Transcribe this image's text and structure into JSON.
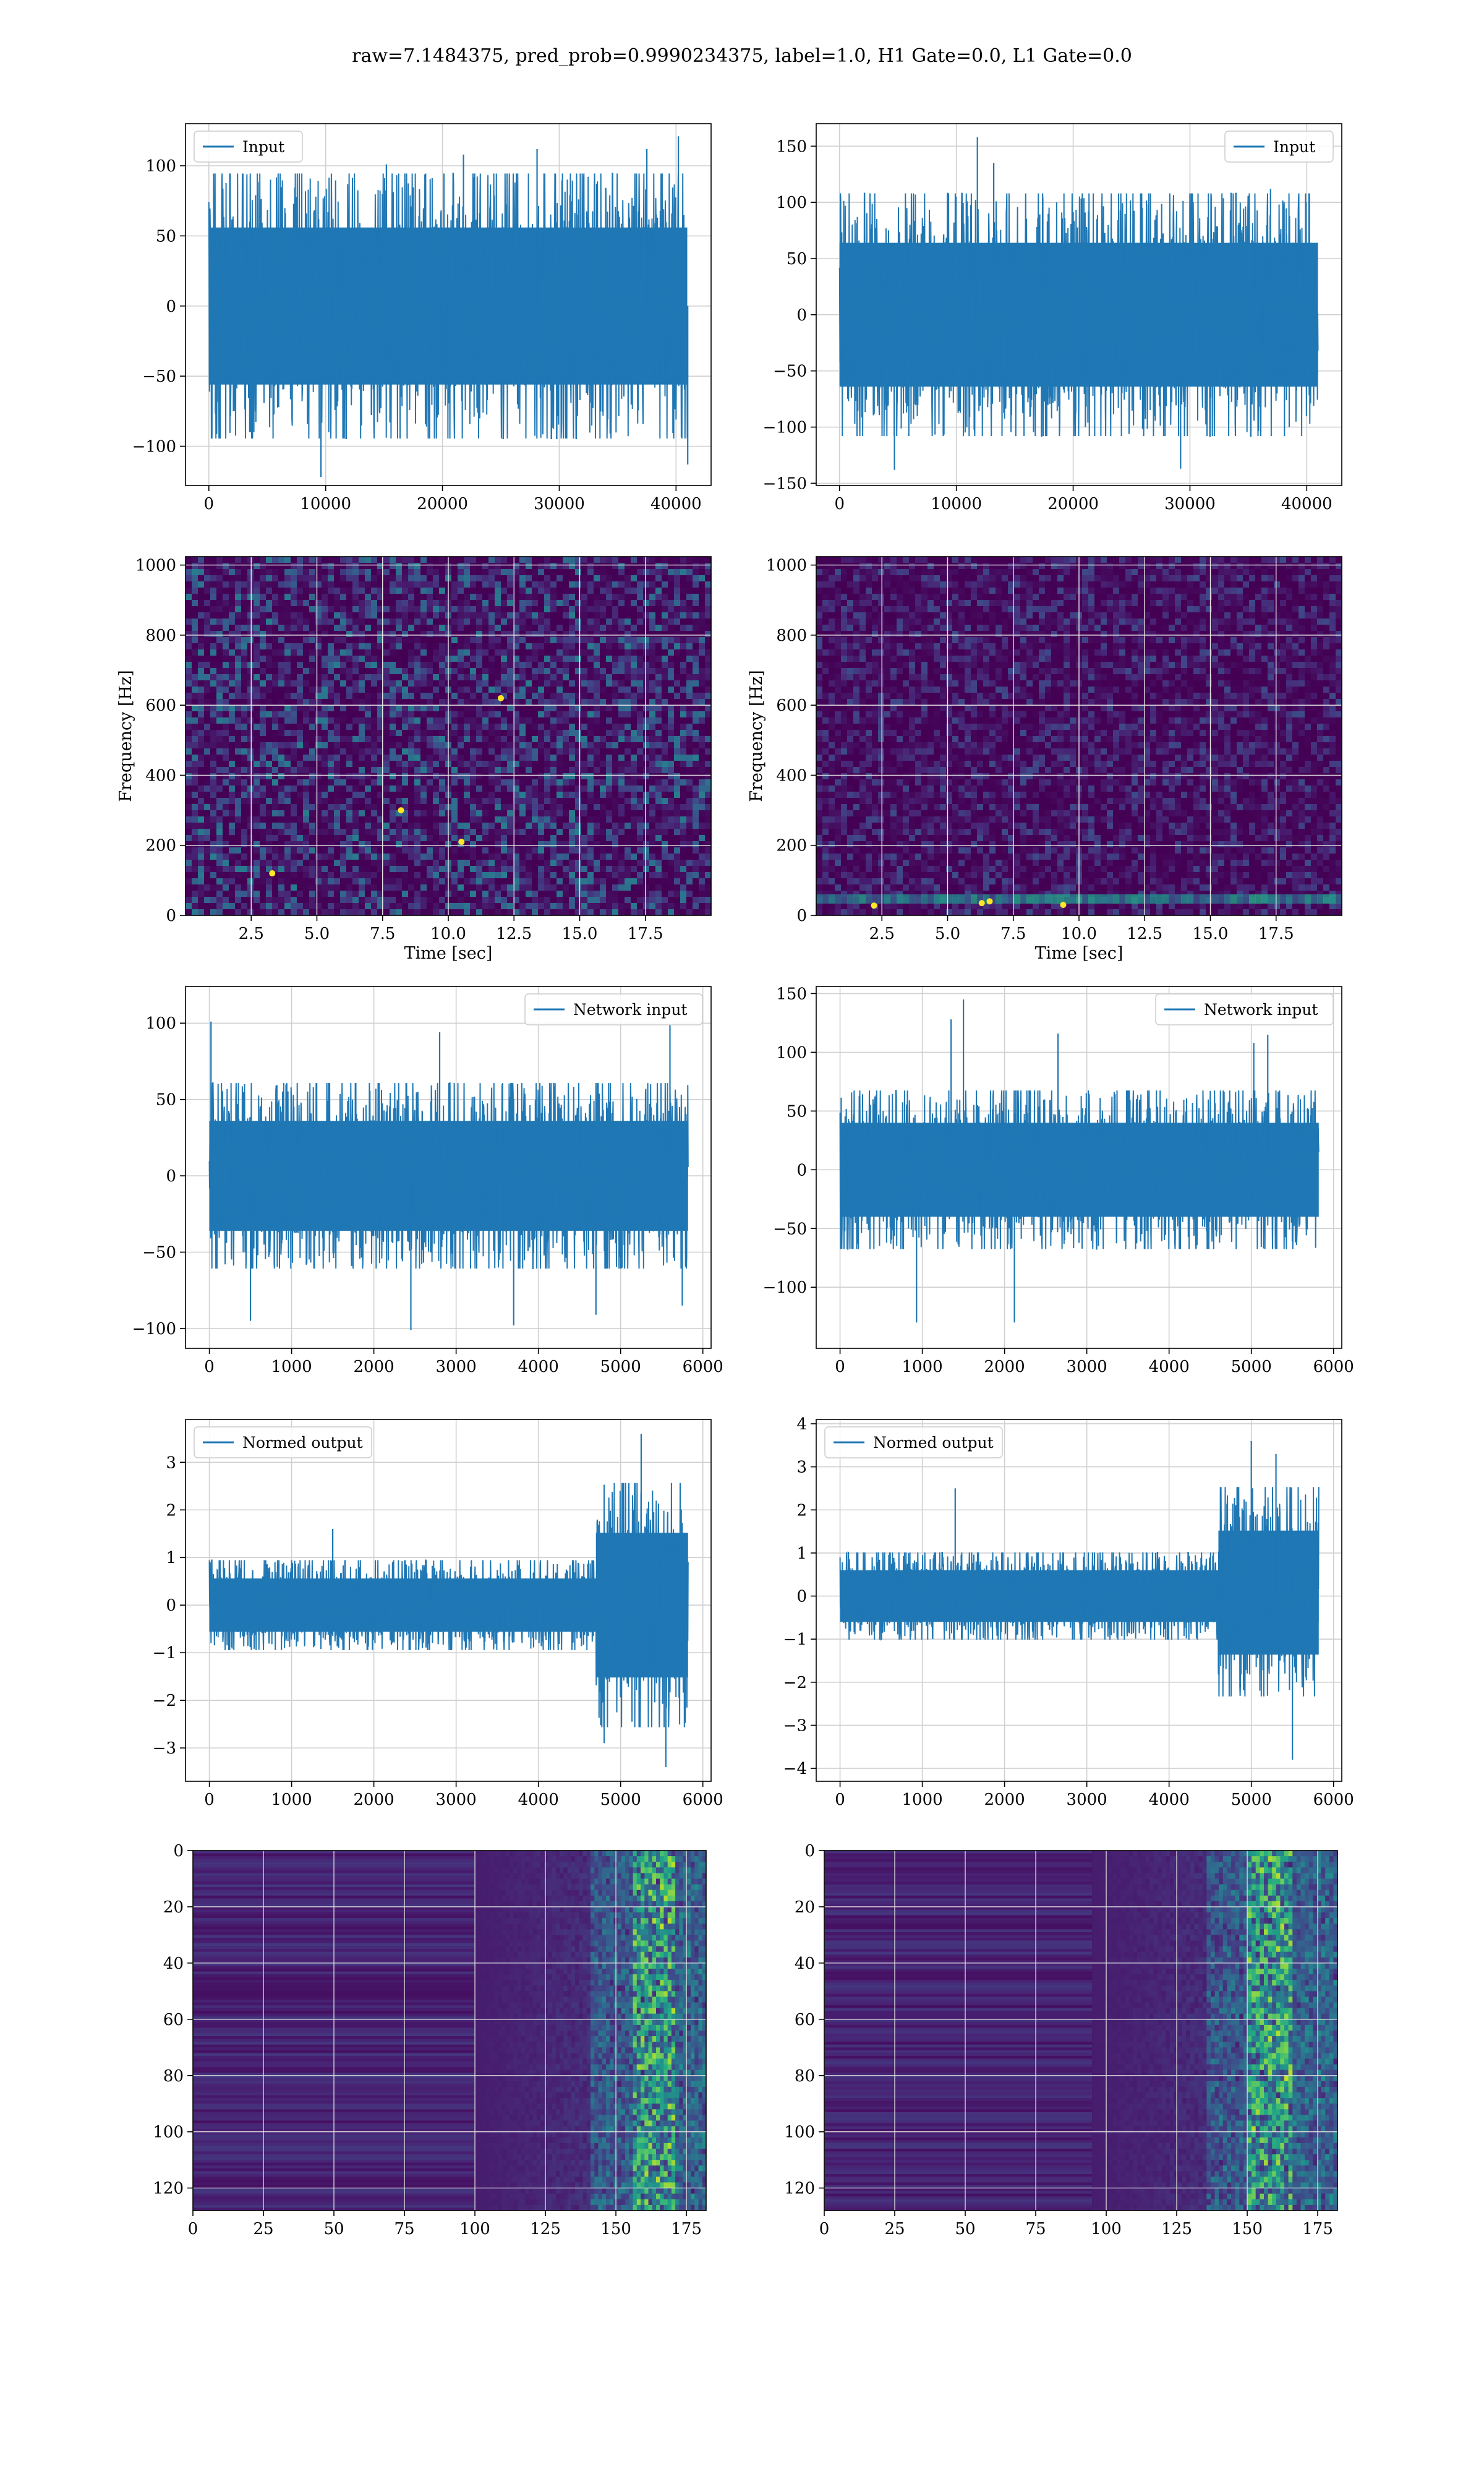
{
  "figure": {
    "title": "raw=7.1484375, pred_prob=0.9990234375, label=1.0, H1 Gate=0.0, L1 Gate=0.0"
  },
  "colors": {
    "line": "#1f77b4",
    "grid": "#d0d0d0",
    "spectrogram_base": "#440154"
  },
  "chart_data": [
    {
      "id": "input-h1",
      "type": "line",
      "legend": {
        "label": "Input",
        "placement": "upper-left"
      },
      "xlim": [
        -2000,
        43000
      ],
      "ylim": [
        -128,
        130
      ],
      "xticks": [
        0,
        10000,
        20000,
        30000,
        40000
      ],
      "yticks": [
        -100,
        -50,
        0,
        50,
        100
      ],
      "x_range": [
        0,
        40960
      ],
      "band": [
        -70,
        70
      ],
      "spikes": [
        [
          3500,
          -90
        ],
        [
          9600,
          -122
        ],
        [
          15200,
          101
        ],
        [
          21800,
          108
        ],
        [
          28100,
          112
        ],
        [
          37500,
          112
        ],
        [
          40200,
          121
        ],
        [
          41000,
          -113
        ]
      ],
      "grid": true
    },
    {
      "id": "input-l1",
      "type": "line",
      "legend": {
        "label": "Input",
        "placement": "upper-right"
      },
      "xlim": [
        -2000,
        43000
      ],
      "ylim": [
        -152,
        170
      ],
      "xticks": [
        0,
        10000,
        20000,
        30000,
        40000
      ],
      "yticks": [
        -150,
        -100,
        -50,
        0,
        50,
        100,
        150
      ],
      "x_range": [
        0,
        40960
      ],
      "band": [
        -80,
        80
      ],
      "spikes": [
        [
          4700,
          -138
        ],
        [
          11800,
          158
        ],
        [
          13200,
          135
        ],
        [
          29200,
          -137
        ],
        [
          36900,
          112
        ],
        [
          38500,
          -100
        ]
      ],
      "grid": true
    },
    {
      "id": "spectrogram-h1",
      "type": "heatmap",
      "xlabel": "Time [sec]",
      "ylabel": "Frequency [Hz]",
      "xlim": [
        0,
        20
      ],
      "ylim": [
        0,
        1024
      ],
      "xticks": [
        2.5,
        5.0,
        7.5,
        10.0,
        12.5,
        15.0,
        17.5
      ],
      "yticks": [
        0,
        200,
        400,
        600,
        800,
        1000
      ],
      "hot_spots": [
        [
          3.3,
          120
        ],
        [
          8.2,
          300
        ],
        [
          10.5,
          210
        ],
        [
          12.0,
          620
        ]
      ],
      "grid": true
    },
    {
      "id": "spectrogram-l1",
      "type": "heatmap",
      "xlabel": "Time [sec]",
      "ylabel": "Frequency [Hz]",
      "xlim": [
        0,
        20
      ],
      "ylim": [
        0,
        1024
      ],
      "xticks": [
        2.5,
        5.0,
        7.5,
        10.0,
        12.5,
        15.0,
        17.5
      ],
      "yticks": [
        0,
        200,
        400,
        600,
        800,
        1000
      ],
      "hot_spots": [
        [
          6.3,
          35
        ],
        [
          6.6,
          40
        ],
        [
          9.4,
          30
        ],
        [
          2.2,
          28
        ]
      ],
      "grid": true
    },
    {
      "id": "network-input-h1",
      "type": "line",
      "legend": {
        "label": "Network input",
        "placement": "upper-right"
      },
      "xlim": [
        -290,
        6100
      ],
      "ylim": [
        -113,
        124
      ],
      "xticks": [
        0,
        1000,
        2000,
        3000,
        4000,
        5000,
        6000
      ],
      "yticks": [
        -100,
        -50,
        0,
        50,
        100
      ],
      "x_range": [
        0,
        5820
      ],
      "band": [
        -45,
        45
      ],
      "spikes": [
        [
          20,
          101
        ],
        [
          500,
          -95
        ],
        [
          2450,
          -101
        ],
        [
          2800,
          94
        ],
        [
          3700,
          -98
        ],
        [
          4700,
          -91
        ],
        [
          5600,
          99
        ],
        [
          5750,
          -85
        ]
      ],
      "grid": true
    },
    {
      "id": "network-input-l1",
      "type": "line",
      "legend": {
        "label": "Network input",
        "placement": "upper-right"
      },
      "xlim": [
        -290,
        6100
      ],
      "ylim": [
        -152,
        156
      ],
      "xticks": [
        0,
        1000,
        2000,
        3000,
        4000,
        5000,
        6000
      ],
      "yticks": [
        -100,
        -50,
        0,
        50,
        100,
        150
      ],
      "x_range": [
        0,
        5820
      ],
      "band": [
        -50,
        50
      ],
      "spikes": [
        [
          930,
          -130
        ],
        [
          1500,
          145
        ],
        [
          2120,
          -130
        ],
        [
          1350,
          128
        ],
        [
          2650,
          116
        ],
        [
          5030,
          108
        ],
        [
          5200,
          115
        ]
      ],
      "grid": true
    },
    {
      "id": "normed-output-h1",
      "type": "line",
      "legend": {
        "label": "Normed output",
        "placement": "upper-left"
      },
      "xlim": [
        -290,
        6100
      ],
      "ylim": [
        -3.7,
        3.9
      ],
      "xticks": [
        0,
        1000,
        2000,
        3000,
        4000,
        5000,
        6000
      ],
      "yticks": [
        -3,
        -2,
        -1,
        0,
        1,
        2,
        3
      ],
      "x_range": [
        0,
        5820
      ],
      "band": [
        -0.7,
        0.7
      ],
      "burst": {
        "start": 4700,
        "end": 5820,
        "band": [
          -1.9,
          1.9
        ]
      },
      "spikes": [
        [
          5250,
          3.6
        ],
        [
          5550,
          -3.4
        ],
        [
          4800,
          -2.9
        ],
        [
          1500,
          1.6
        ]
      ],
      "grid": true
    },
    {
      "id": "normed-output-l1",
      "type": "line",
      "legend": {
        "label": "Normed output",
        "placement": "upper-left"
      },
      "xlim": [
        -290,
        6100
      ],
      "ylim": [
        -4.3,
        4.1
      ],
      "xticks": [
        0,
        1000,
        2000,
        3000,
        4000,
        5000,
        6000
      ],
      "yticks": [
        -4,
        -3,
        -2,
        -1,
        0,
        1,
        2,
        3,
        4
      ],
      "x_range": [
        0,
        5820
      ],
      "band": [
        -0.75,
        0.75
      ],
      "burst": {
        "start": 4600,
        "end": 5820,
        "band": [
          -1.7,
          1.9
        ]
      },
      "spikes": [
        [
          5000,
          3.6
        ],
        [
          5500,
          -3.8
        ],
        [
          1400,
          2.5
        ],
        [
          5300,
          3.3
        ]
      ],
      "grid": true
    },
    {
      "id": "feature-map-h1",
      "type": "heatmap",
      "xlim": [
        0,
        182
      ],
      "ylim": [
        128,
        0
      ],
      "xticks": [
        0,
        25,
        50,
        75,
        100,
        125,
        150,
        175
      ],
      "yticks": [
        0,
        20,
        40,
        60,
        80,
        100,
        120
      ],
      "activity_start": 100,
      "peak_range": [
        155,
        170
      ],
      "grid": true
    },
    {
      "id": "feature-map-l1",
      "type": "heatmap",
      "xlim": [
        0,
        182
      ],
      "ylim": [
        128,
        0
      ],
      "xticks": [
        0,
        25,
        50,
        75,
        100,
        125,
        150,
        175
      ],
      "yticks": [
        0,
        20,
        40,
        60,
        80,
        100,
        120
      ],
      "activity_start": 95,
      "peak_range": [
        150,
        165
      ],
      "grid": true
    }
  ]
}
